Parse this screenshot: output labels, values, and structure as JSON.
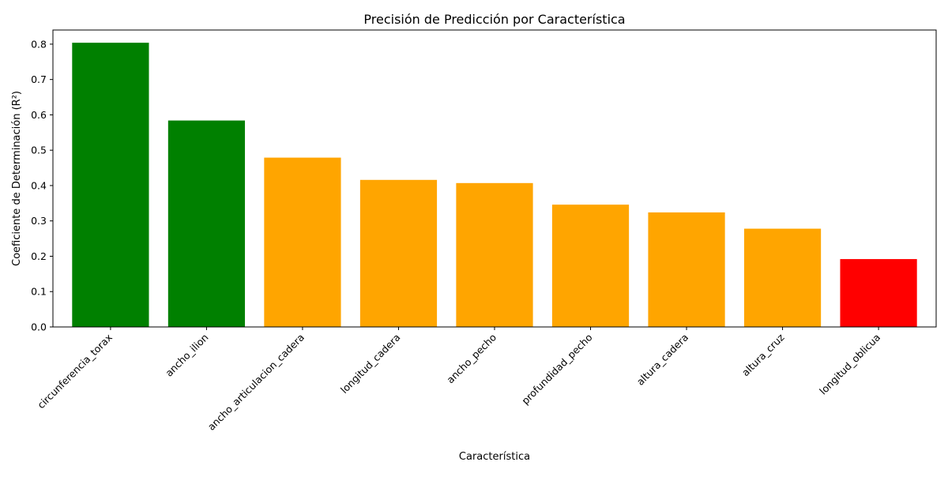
{
  "chart_data": {
    "type": "bar",
    "title": "Precisión de Predicción por Característica",
    "xlabel": "Característica",
    "ylabel": "Coeficiente de Determinación (R²)",
    "categories": [
      "circunferencia_torax",
      "ancho_ilion",
      "ancho_articulacion_cadera",
      "longitud_cadera",
      "ancho_pecho",
      "profundidad_pecho",
      "altura_cadera",
      "altura_cruz",
      "longitud_oblicua"
    ],
    "values": [
      0.804,
      0.584,
      0.479,
      0.416,
      0.407,
      0.346,
      0.324,
      0.278,
      0.192
    ],
    "bar_colors": [
      "#008000",
      "#008000",
      "#FFA500",
      "#FFA500",
      "#FFA500",
      "#FFA500",
      "#FFA500",
      "#FFA500",
      "#FF0000"
    ],
    "ylim": [
      0,
      0.84
    ],
    "yticks": [
      0.0,
      0.1,
      0.2,
      0.3,
      0.4,
      0.5,
      0.6,
      0.7,
      0.8
    ],
    "ytick_labels": [
      "0.0",
      "0.1",
      "0.2",
      "0.3",
      "0.4",
      "0.5",
      "0.6",
      "0.7",
      "0.8"
    ],
    "grid": false,
    "legend": "none"
  }
}
